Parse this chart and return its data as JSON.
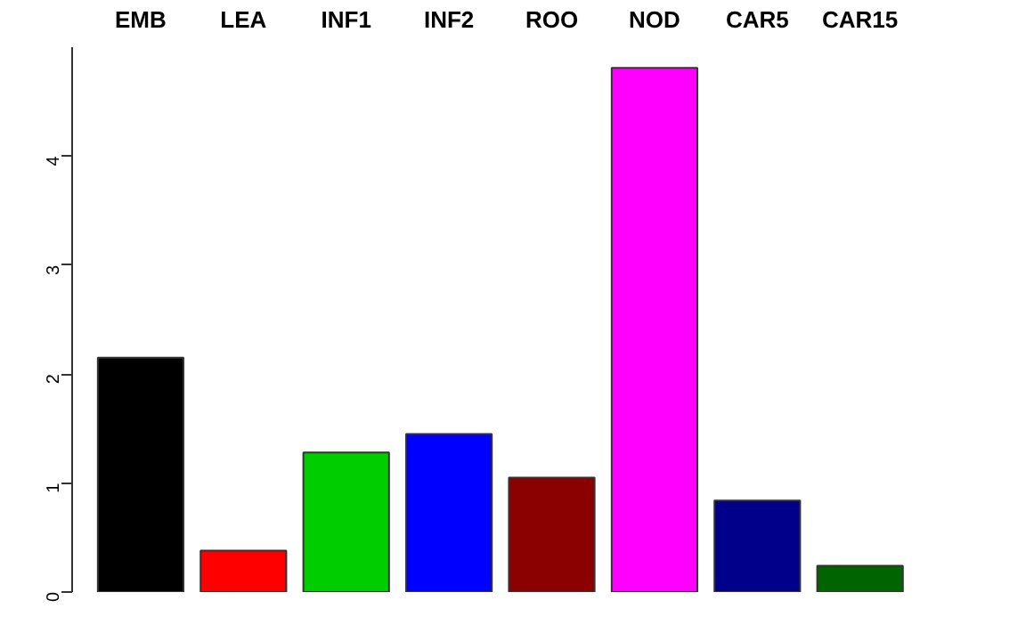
{
  "chart_data": {
    "type": "bar",
    "categories": [
      "EMB",
      "LEA",
      "INF1",
      "INF2",
      "ROO",
      "NOD",
      "CAR5",
      "CAR15"
    ],
    "values": [
      2.15,
      0.38,
      1.28,
      1.45,
      1.05,
      4.81,
      0.84,
      0.24
    ],
    "colors": [
      "#000000",
      "#ff0000",
      "#00cd00",
      "#0000ff",
      "#8b0000",
      "#ff00ff",
      "#00008b",
      "#006400"
    ],
    "ylim": [
      0,
      5.0
    ],
    "yticks": [
      0,
      1,
      2,
      3,
      4
    ],
    "grid": false
  }
}
